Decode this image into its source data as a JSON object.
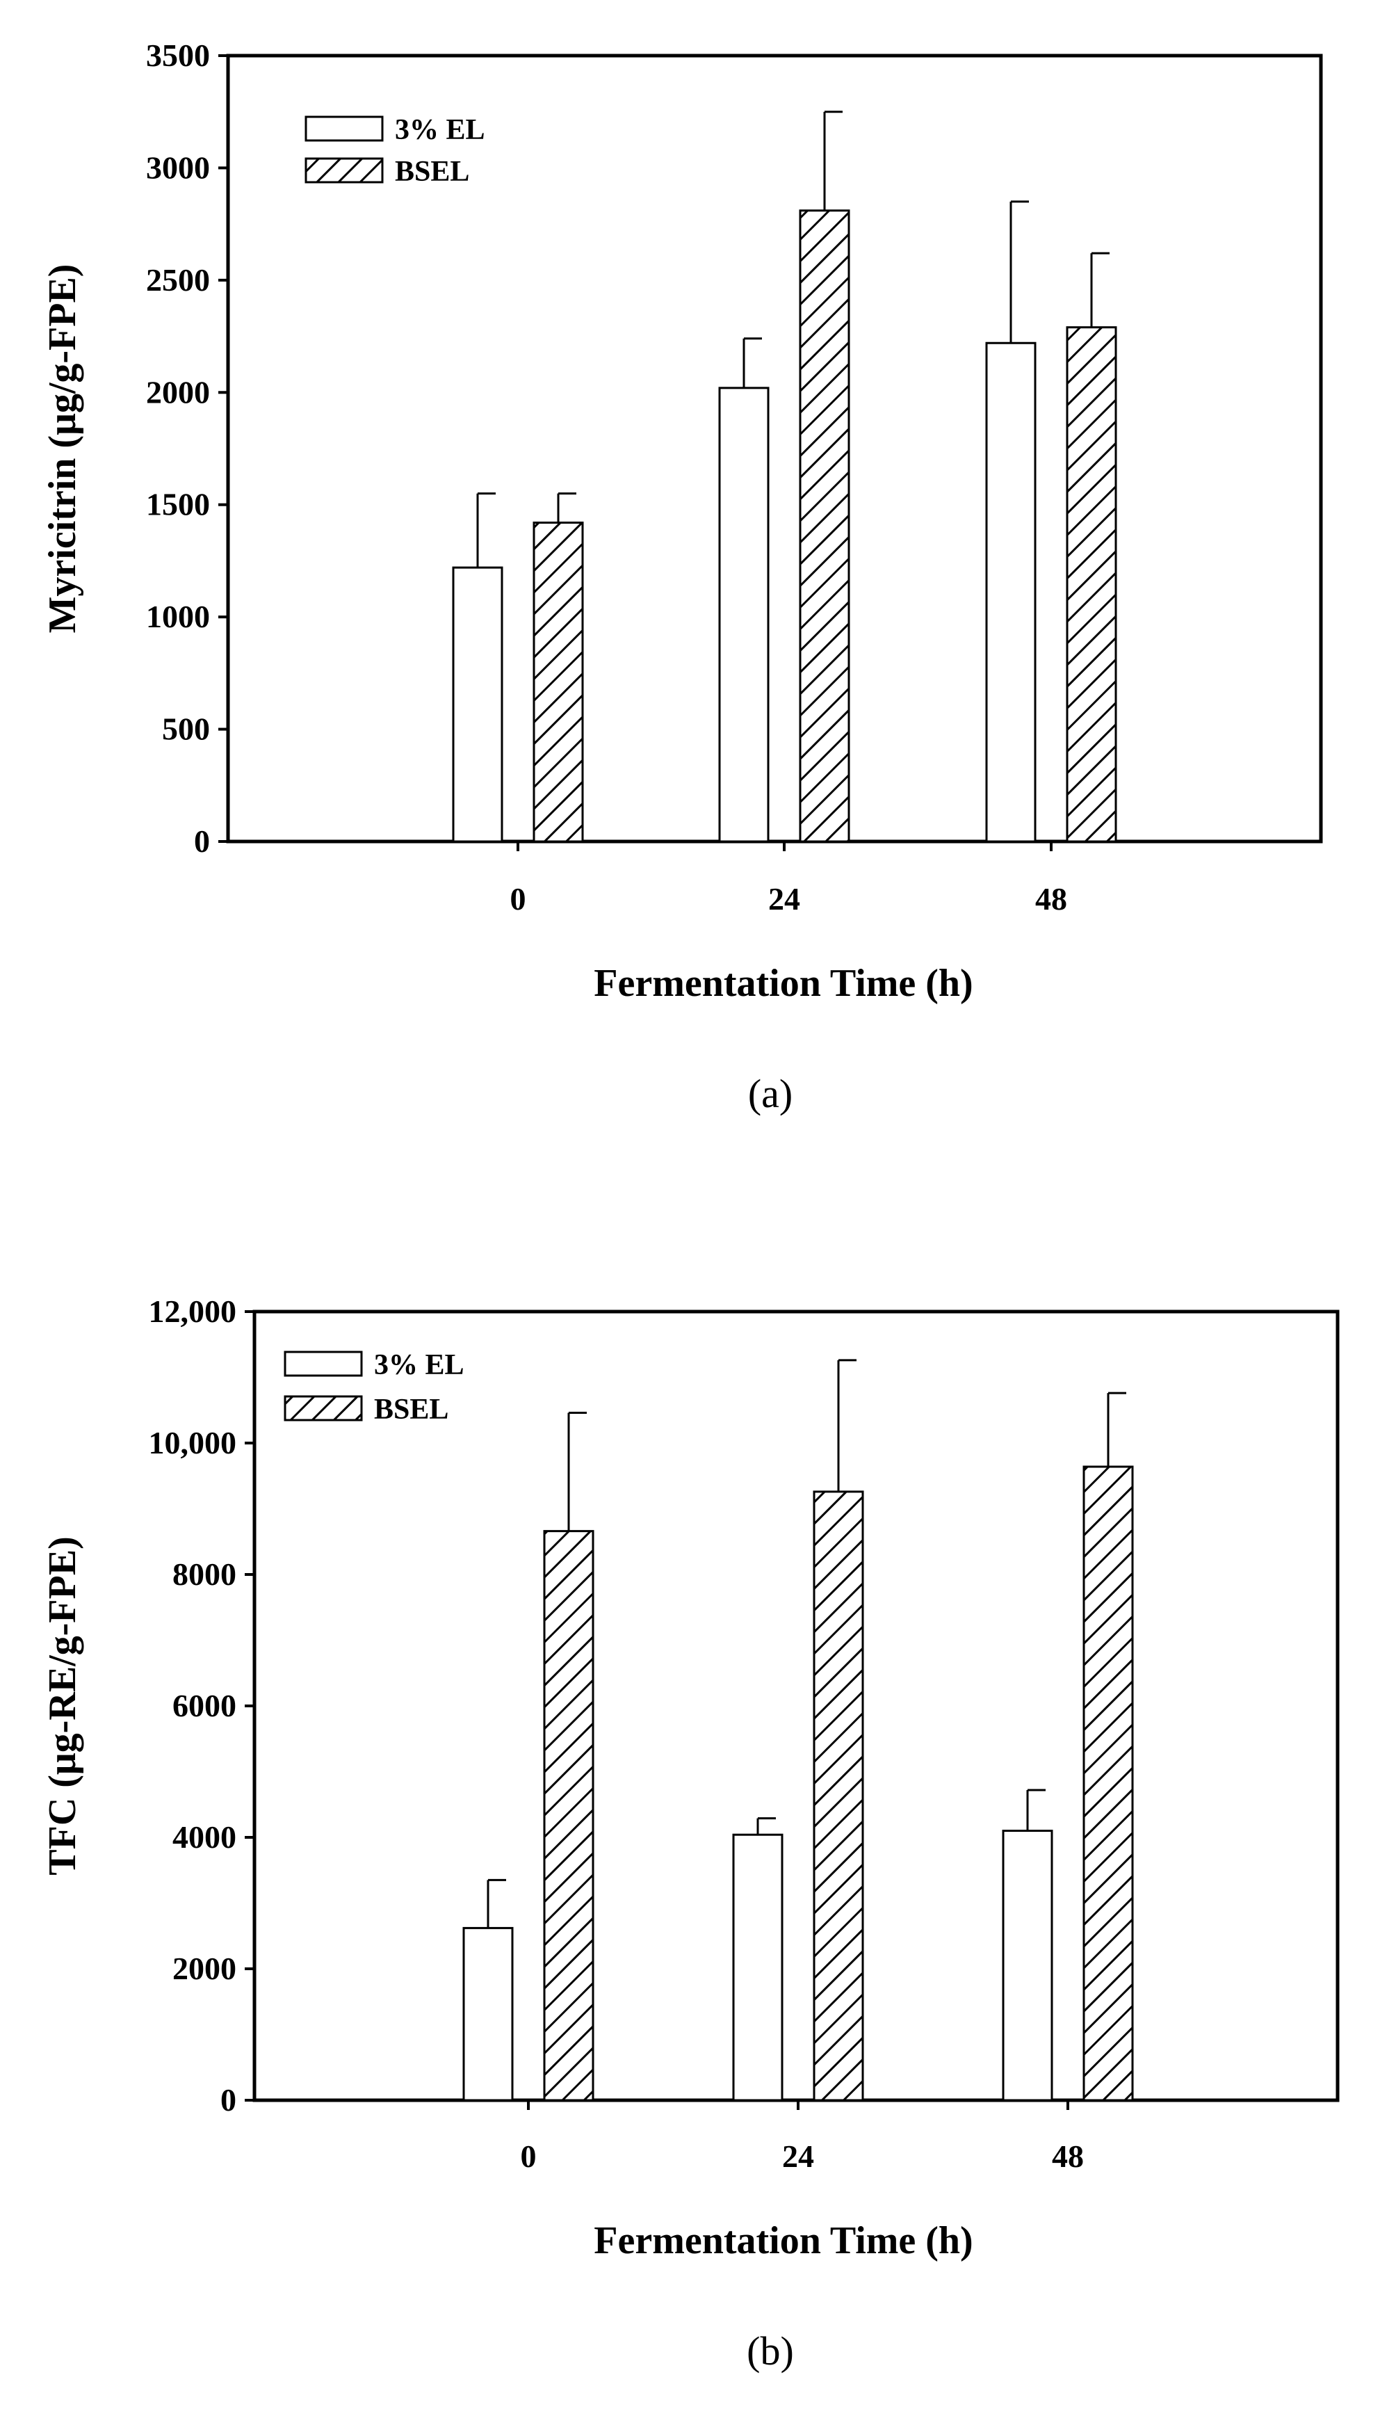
{
  "chart_data": [
    {
      "type": "bar",
      "panel_label": "(a)",
      "categories": [
        "0",
        "24",
        "48"
      ],
      "xlabel": "Fermentation Time (h)",
      "ylabel": "Myricitrin (μg/g-FPE)",
      "ylim": [
        0,
        3500
      ],
      "yticks": [
        0,
        500,
        1000,
        1500,
        2000,
        2500,
        3000,
        3500
      ],
      "ytick_labels": [
        "0",
        "500",
        "1000",
        "1500",
        "2000",
        "2500",
        "3000",
        "3500"
      ],
      "legend_position": "top-left",
      "series": [
        {
          "name": "3% EL",
          "pattern": "open",
          "values": [
            1220,
            2020,
            2220
          ],
          "errors": [
            330,
            220,
            630
          ]
        },
        {
          "name": "BSEL",
          "pattern": "hatch",
          "values": [
            1420,
            2810,
            2290
          ],
          "errors": [
            130,
            440,
            330
          ]
        }
      ]
    },
    {
      "type": "bar",
      "panel_label": "(b)",
      "categories": [
        "0",
        "24",
        "48"
      ],
      "xlabel": "Fermentation Time (h)",
      "ylabel": "TFC (μg-RE/g-FPE)",
      "ylim": [
        0,
        12000
      ],
      "yticks": [
        0,
        2000,
        4000,
        6000,
        8000,
        10000,
        12000
      ],
      "ytick_labels": [
        "0",
        "2000",
        "4000",
        "6000",
        "8000",
        "10,000",
        "12,000"
      ],
      "legend_position": "top-left",
      "series": [
        {
          "name": "3% EL",
          "pattern": "open",
          "values": [
            2620,
            4040,
            4100
          ],
          "errors": [
            730,
            250,
            620
          ]
        },
        {
          "name": "BSEL",
          "pattern": "hatch",
          "values": [
            8660,
            9260,
            9640
          ],
          "errors": [
            1800,
            2000,
            1120
          ]
        }
      ]
    }
  ]
}
